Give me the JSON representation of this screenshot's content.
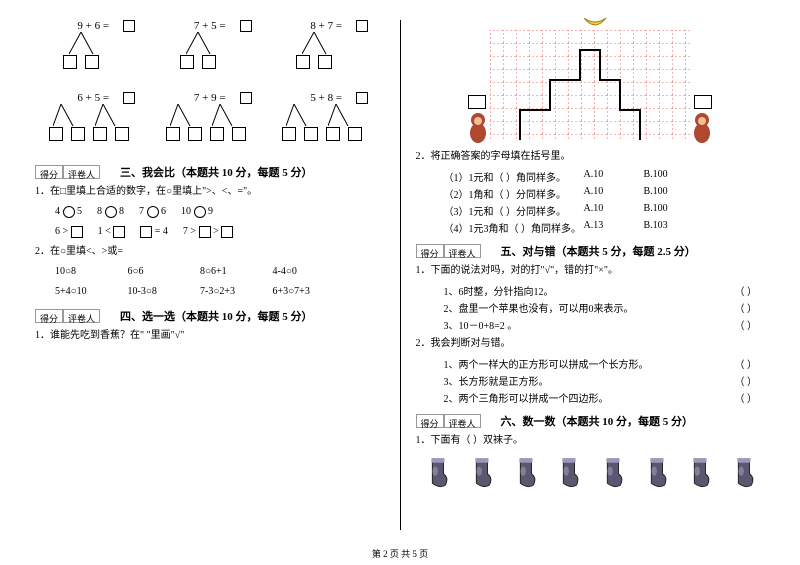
{
  "score_labels": {
    "score": "得分",
    "grader": "评卷人"
  },
  "page_footer": "第 2 页 共 5 页",
  "trees": {
    "row1": [
      {
        "eq": "9 + 6 =",
        "has_result_box": true
      },
      {
        "eq": "7 + 5 =",
        "has_result_box": true
      },
      {
        "eq": "8 + 7 =",
        "has_result_box": true
      }
    ],
    "row2": [
      {
        "eq": "6 + 5 =",
        "has_result_box": true
      },
      {
        "eq": "7 + 9 =",
        "has_result_box": true
      },
      {
        "eq": "5 + 8 =",
        "has_result_box": true
      }
    ]
  },
  "section3": {
    "title": "三、我会比（本题共 10 分，每题 5 分）",
    "q1": "1．在□里填上合适的数字，在○里填上\">、<、=\"。",
    "q1_line1": [
      "4",
      "5",
      "8",
      "8",
      "7",
      "6",
      "10",
      "9"
    ],
    "q1_line2": [
      "6 >",
      "1 <",
      "= 4",
      "7 >",
      ">"
    ],
    "q2": "2．在○里填<、>或=",
    "q2_rows": [
      [
        "10○8",
        "6○6",
        "8○6+1",
        "4-4○0"
      ],
      [
        "5+4○10",
        "10-3○8",
        "7-3○2+3",
        "6+3○7+3"
      ]
    ]
  },
  "section4": {
    "title": "四、选一选（本题共 10 分，每题 5 分）",
    "q1": "1．谁能先吃到香蕉？在\"    \"里画\"√\""
  },
  "grid": {
    "banana_color": "#f5d040",
    "grid_color": "#e64040",
    "path_color": "#000000",
    "monkey_color": "#b04830",
    "box_color": "#000000"
  },
  "section4b": {
    "q2": "2．将正确答案的字母填在括号里。",
    "items": [
      {
        "q": "（1）1元和（    ）角同样多。",
        "a": "A.10",
        "b": "B.100"
      },
      {
        "q": "（2）1角和（    ）分同样多。",
        "a": "A.10",
        "b": "B.100"
      },
      {
        "q": "（3）1元和（    ）分同样多。",
        "a": "A.10",
        "b": "B.100"
      },
      {
        "q": "（4）1元3角和（    ）角同样多。",
        "a": "A.13",
        "b": "B.103"
      }
    ]
  },
  "section5": {
    "title": "五、对与错（本题共 5 分，每题 2.5 分）",
    "q1": "1．下面的说法对吗，对的打\"√\"，错的打\"×\"。",
    "items1": [
      "1、6时整，分针指向12。",
      "2、盘里一个苹果也没有，可以用0来表示。",
      "3、10－0+8=2 。"
    ],
    "q2": "2．我会判断对与错。",
    "items2": [
      "1、两个一样大的正方形可以拼成一个长方形。",
      "3、长方形就是正方形。",
      "2、两个三角形可以拼成一个四边形。"
    ]
  },
  "section6": {
    "title": "六、数一数（本题共 10 分，每题 5 分）",
    "q1": "1．下面有（     ）双袜子。",
    "sock_count": 8,
    "sock_color": "#5a5870",
    "sock_highlight": "#9c98b8"
  }
}
